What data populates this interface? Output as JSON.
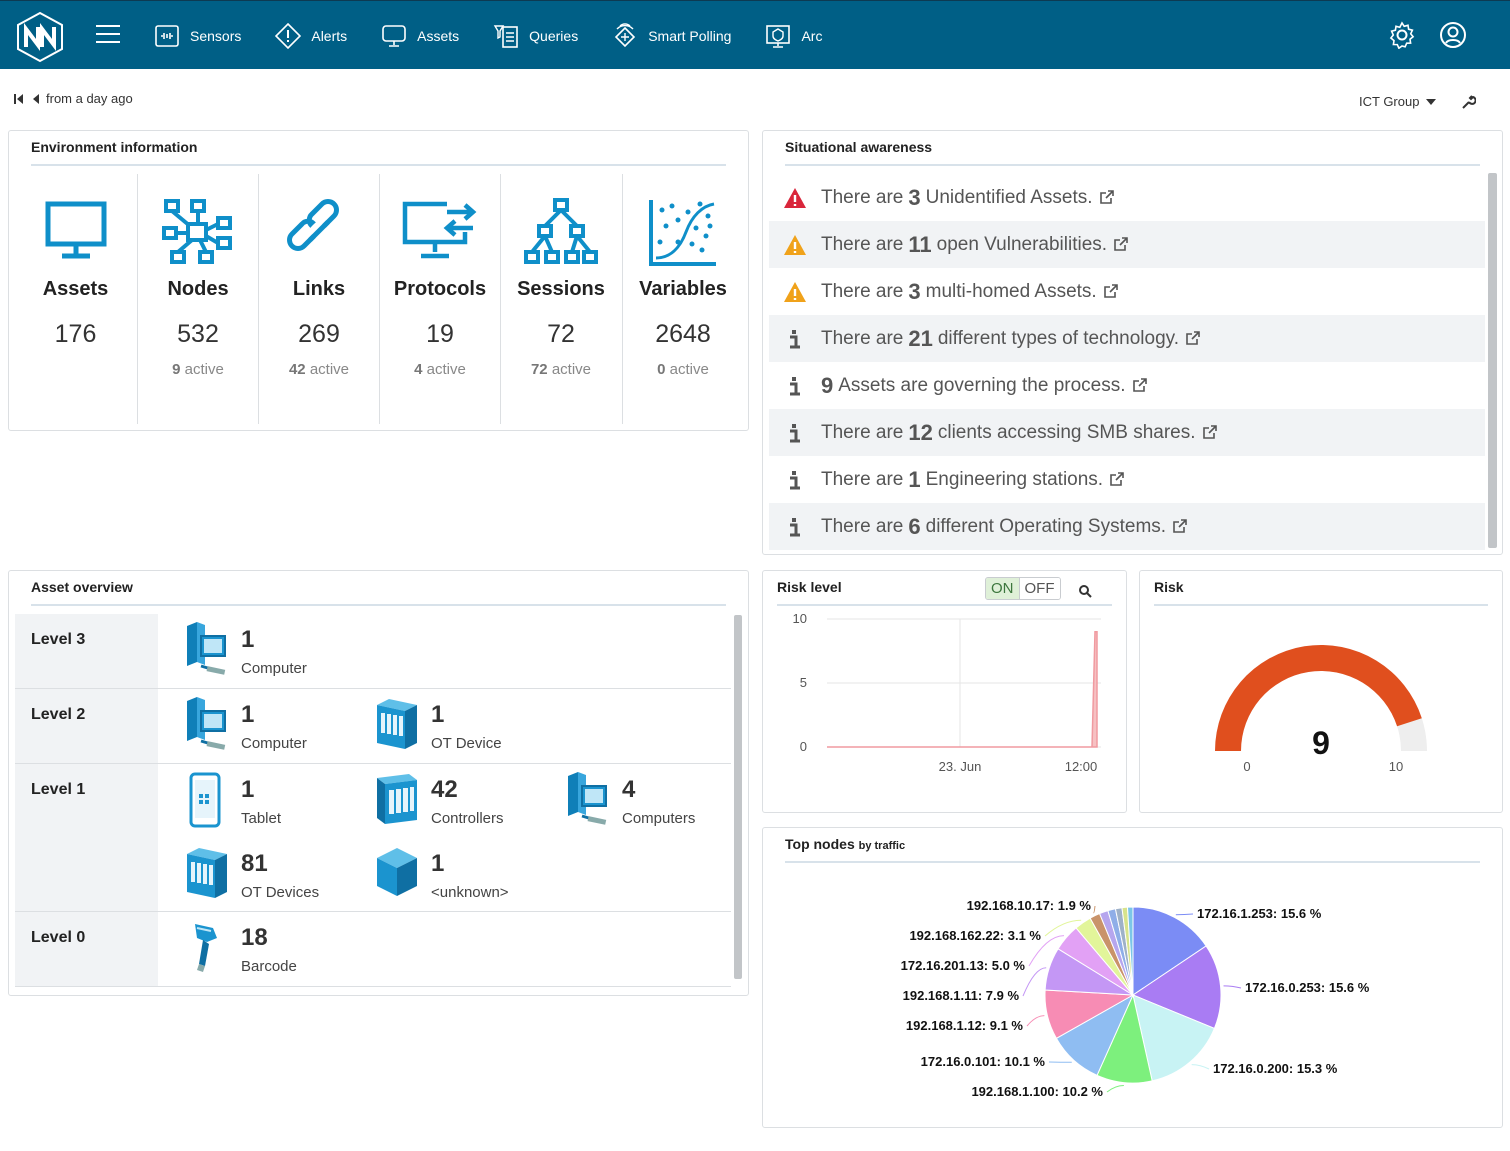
{
  "nav": {
    "items": [
      {
        "label": "Sensors",
        "icon": "sensors-icon"
      },
      {
        "label": "Alerts",
        "icon": "alert-icon"
      },
      {
        "label": "Assets",
        "icon": "monitor-icon"
      },
      {
        "label": "Queries",
        "icon": "queries-icon"
      },
      {
        "label": "Smart Polling",
        "icon": "smart-polling-icon"
      },
      {
        "label": "Arc",
        "icon": "arc-icon"
      }
    ]
  },
  "timeline": {
    "label": "from a day ago"
  },
  "group_selector": {
    "label": "ICT Group"
  },
  "environment": {
    "title": "Environment information",
    "items": [
      {
        "label": "Assets",
        "value": "176",
        "active": "",
        "active_label": ""
      },
      {
        "label": "Nodes",
        "value": "532",
        "active": "9",
        "active_label": "active"
      },
      {
        "label": "Links",
        "value": "269",
        "active": "42",
        "active_label": "active"
      },
      {
        "label": "Protocols",
        "value": "19",
        "active": "4",
        "active_label": "active"
      },
      {
        "label": "Sessions",
        "value": "72",
        "active": "72",
        "active_label": "active"
      },
      {
        "label": "Variables",
        "value": "2648",
        "active": "0",
        "active_label": "active"
      }
    ]
  },
  "situational": {
    "title": "Situational awareness",
    "rows": [
      {
        "severity": "danger",
        "pre": "There are",
        "count": "3",
        "post": "Unidentified Assets."
      },
      {
        "severity": "warning",
        "pre": "There are",
        "count": "11",
        "post": "open Vulnerabilities."
      },
      {
        "severity": "warning",
        "pre": "There are",
        "count": "3",
        "post": "multi-homed Assets."
      },
      {
        "severity": "info",
        "pre": "There are",
        "count": "21",
        "post": "different types of technology."
      },
      {
        "severity": "info",
        "pre": "",
        "count": "9",
        "post": "Assets are governing the process."
      },
      {
        "severity": "info",
        "pre": "There are",
        "count": "12",
        "post": "clients accessing SMB shares."
      },
      {
        "severity": "info",
        "pre": "There are",
        "count": "1",
        "post": "Engineering stations."
      },
      {
        "severity": "info",
        "pre": "There are",
        "count": "6",
        "post": "different Operating Systems."
      }
    ]
  },
  "asset_overview": {
    "title": "Asset overview",
    "levels": [
      {
        "name": "Level 3",
        "assets": [
          {
            "count": "1",
            "type": "Computer"
          }
        ]
      },
      {
        "name": "Level 2",
        "assets": [
          {
            "count": "1",
            "type": "Computer"
          },
          {
            "count": "1",
            "type": "OT Device"
          }
        ]
      },
      {
        "name": "Level 1",
        "assets": [
          {
            "count": "1",
            "type": "Tablet"
          },
          {
            "count": "42",
            "type": "Controllers"
          },
          {
            "count": "4",
            "type": "Computers"
          },
          {
            "count": "81",
            "type": "OT Devices"
          },
          {
            "count": "1",
            "type": "<unknown>"
          }
        ]
      },
      {
        "name": "Level 0",
        "assets": [
          {
            "count": "18",
            "type": "Barcode"
          }
        ]
      }
    ]
  },
  "risk_level": {
    "title": "Risk level",
    "toggle_on": "ON",
    "toggle_off": "OFF",
    "chart_data": {
      "type": "area",
      "title": "Risk level",
      "y_ticks": [
        "10",
        "5",
        "0"
      ],
      "x_ticks": [
        "23. Jun",
        "12:00"
      ],
      "ylim": [
        0,
        10
      ],
      "series": [
        {
          "name": "risk",
          "values": [
            0,
            0,
            0,
            0,
            0,
            0,
            0,
            0,
            0,
            9
          ]
        }
      ]
    }
  },
  "risk_gauge": {
    "title": "Risk",
    "value": "9",
    "min": "0",
    "max": "10",
    "fill_fraction": 0.9,
    "color": "#e04f1e"
  },
  "top_nodes": {
    "title": "Top nodes",
    "subtitle": "by traffic",
    "chart_data": {
      "type": "pie",
      "slices": [
        {
          "label": "172.16.1.253: 15.6 %",
          "value": 15.6,
          "color": "#7b8cf5"
        },
        {
          "label": "172.16.0.253: 15.6 %",
          "value": 15.6,
          "color": "#a97cf3"
        },
        {
          "label": "172.16.0.200: 15.3 %",
          "value": 15.3,
          "color": "#c8f3f4"
        },
        {
          "label": "192.168.1.100: 10.2 %",
          "value": 10.2,
          "color": "#7df07d"
        },
        {
          "label": "172.16.0.101: 10.1 %",
          "value": 10.1,
          "color": "#8fbdf2"
        },
        {
          "label": "192.168.1.12: 9.1 %",
          "value": 9.1,
          "color": "#f78cb4"
        },
        {
          "label": "192.168.1.11: 7.9 %",
          "value": 7.9,
          "color": "#c497f5"
        },
        {
          "label": "172.16.201.13: 5.0 %",
          "value": 5.0,
          "color": "#e2a1f5"
        },
        {
          "label": "192.168.162.22: 3.1 %",
          "value": 3.1,
          "color": "#e2f59a"
        },
        {
          "label": "192.168.10.17: 1.9 %",
          "value": 1.9,
          "color": "#c9936a"
        },
        {
          "label": "",
          "value": 1.6,
          "color": "#b6a6ee"
        },
        {
          "label": "",
          "value": 1.4,
          "color": "#8faee8"
        },
        {
          "label": "",
          "value": 1.2,
          "color": "#9eb1c8"
        },
        {
          "label": "",
          "value": 1.0,
          "color": "#d7e38c"
        },
        {
          "label": "",
          "value": 1.0,
          "color": "#7bc6e8"
        }
      ]
    }
  }
}
